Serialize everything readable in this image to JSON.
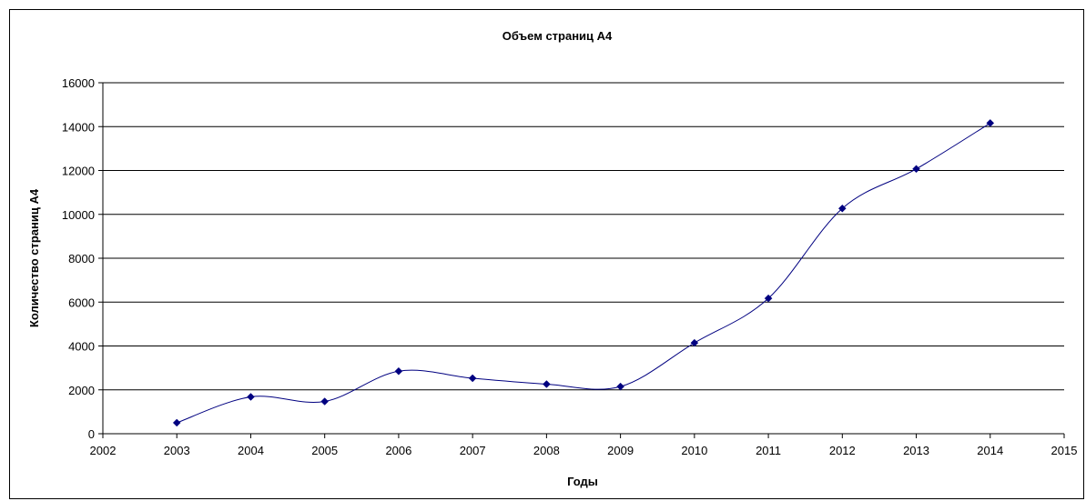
{
  "chart_data": {
    "type": "scatter",
    "title": "Объем страниц А4",
    "xlabel": "Годы",
    "ylabel": "Количество страниц А4",
    "xlim": [
      2002,
      2015
    ],
    "ylim": [
      0,
      16000
    ],
    "x_ticks": [
      "2002",
      "2003",
      "2004",
      "2005",
      "2006",
      "2007",
      "2008",
      "2009",
      "2010",
      "2011",
      "2012",
      "2013",
      "2014",
      "2015"
    ],
    "y_ticks": [
      "0",
      "2000",
      "4000",
      "6000",
      "8000",
      "10000",
      "12000",
      "14000",
      "16000"
    ],
    "grid": "horizontal",
    "smoothed_line": true,
    "series": [
      {
        "color": "#000080",
        "x": [
          2003,
          2004,
          2005,
          2006,
          2007,
          2008,
          2009,
          2010,
          2011,
          2012,
          2013,
          2014
        ],
        "y": [
          500,
          1680,
          1470,
          2850,
          2530,
          2260,
          2150,
          4140,
          6170,
          10270,
          12070,
          14160
        ]
      }
    ]
  }
}
